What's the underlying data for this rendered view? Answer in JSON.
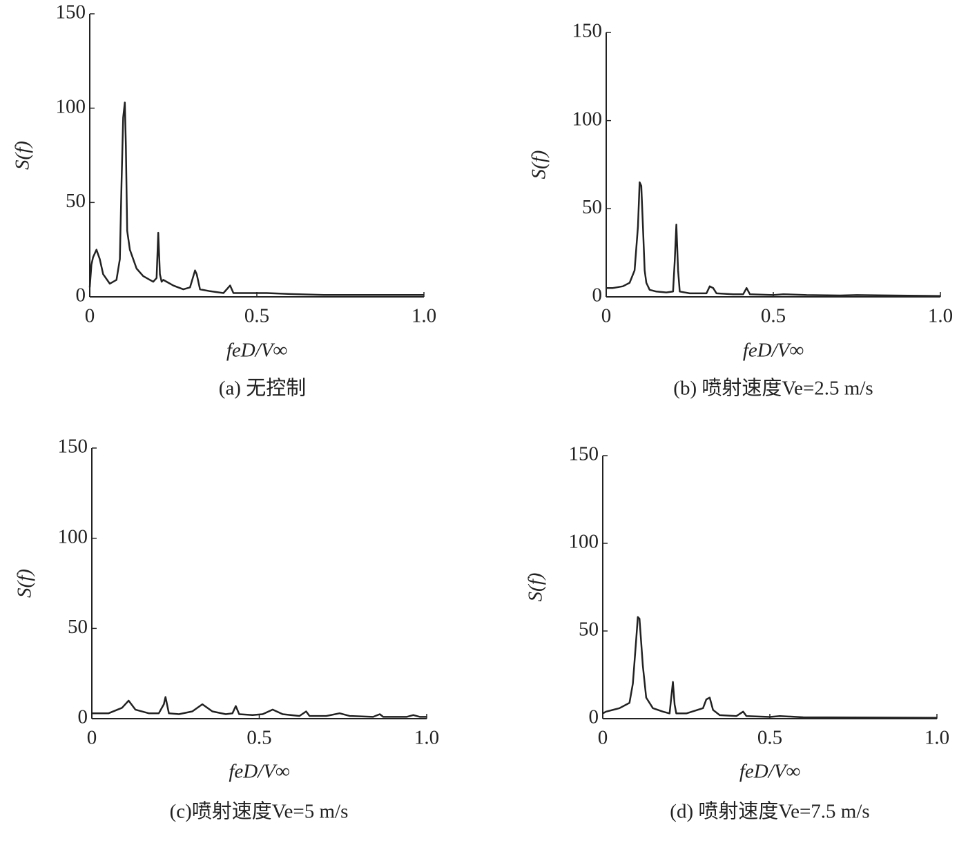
{
  "chart_data": [
    {
      "type": "line",
      "caption": "(a) 无控制",
      "xlabel": "feD/V∞",
      "ylabel": "S(f)",
      "color": "#222222",
      "xlim": [
        0,
        1
      ],
      "xticks": [
        0,
        0.5,
        {
          "value": 1,
          "label": "1.0"
        }
      ],
      "ylim": [
        0,
        150
      ],
      "yticks": [
        0,
        50,
        100,
        150
      ],
      "x": [
        0,
        0.005,
        0.01,
        0.02,
        0.03,
        0.04,
        0.06,
        0.08,
        0.09,
        0.095,
        0.1,
        0.105,
        0.108,
        0.112,
        0.12,
        0.14,
        0.16,
        0.18,
        0.19,
        0.2,
        0.205,
        0.21,
        0.215,
        0.22,
        0.23,
        0.25,
        0.28,
        0.3,
        0.315,
        0.32,
        0.33,
        0.36,
        0.4,
        0.42,
        0.43,
        0.45,
        0.5,
        0.53,
        0.6,
        0.7,
        0.8,
        1.0
      ],
      "values": [
        5,
        17,
        21,
        25,
        20,
        12,
        7,
        9,
        20,
        60,
        95,
        103,
        80,
        35,
        25,
        15,
        11,
        9,
        8,
        10,
        34,
        12,
        8,
        9,
        8,
        6,
        4,
        5,
        14,
        12,
        4,
        3,
        2,
        6,
        2,
        2,
        2,
        2,
        1.5,
        1,
        1,
        1
      ]
    },
    {
      "type": "line",
      "caption": "(b) 喷射速度Ve=2.5 m/s",
      "xlabel": "feD/V∞",
      "ylabel": "S(f)",
      "color": "#222222",
      "xlim": [
        0,
        1
      ],
      "xticks": [
        0,
        0.5,
        {
          "value": 1,
          "label": "1.0"
        }
      ],
      "ylim": [
        0,
        150
      ],
      "yticks": [
        0,
        50,
        100,
        150
      ],
      "x": [
        0,
        0.02,
        0.05,
        0.07,
        0.085,
        0.095,
        0.1,
        0.105,
        0.11,
        0.115,
        0.12,
        0.13,
        0.15,
        0.18,
        0.2,
        0.205,
        0.21,
        0.215,
        0.22,
        0.25,
        0.3,
        0.31,
        0.32,
        0.33,
        0.38,
        0.41,
        0.42,
        0.43,
        0.5,
        0.53,
        0.6,
        0.7,
        0.75,
        1.0
      ],
      "values": [
        5,
        5,
        6,
        8,
        15,
        40,
        65,
        63,
        40,
        15,
        8,
        4,
        3,
        2.5,
        3,
        20,
        41,
        15,
        3,
        2,
        2,
        6,
        5,
        2,
        1.5,
        1.5,
        5,
        1.5,
        1,
        1.5,
        1,
        0.8,
        1,
        0.5
      ]
    },
    {
      "type": "line",
      "caption": "(c)喷射速度Ve=5 m/s",
      "xlabel": "feD/V∞",
      "ylabel": "S(f)",
      "color": "#222222",
      "xlim": [
        0,
        1
      ],
      "xticks": [
        0,
        0.5,
        {
          "value": 1,
          "label": "1.0"
        }
      ],
      "ylim": [
        0,
        150
      ],
      "yticks": [
        0,
        50,
        100,
        150
      ],
      "x": [
        0,
        0.05,
        0.09,
        0.11,
        0.13,
        0.17,
        0.2,
        0.215,
        0.22,
        0.23,
        0.26,
        0.3,
        0.33,
        0.36,
        0.4,
        0.42,
        0.43,
        0.44,
        0.48,
        0.51,
        0.54,
        0.57,
        0.62,
        0.64,
        0.65,
        0.7,
        0.74,
        0.77,
        0.84,
        0.86,
        0.87,
        0.94,
        0.96,
        0.98,
        1.0
      ],
      "values": [
        3,
        3,
        6,
        10,
        5,
        3,
        3,
        8,
        12,
        3,
        2.5,
        4,
        8,
        4,
        2.5,
        3,
        7,
        2.5,
        2,
        2.5,
        5,
        2.5,
        1.5,
        4,
        1.5,
        1.5,
        3,
        1.5,
        1,
        2.5,
        1,
        1,
        2,
        1,
        1
      ]
    },
    {
      "type": "line",
      "caption": "(d) 喷射速度Ve=7.5 m/s",
      "xlabel": "feD/V∞",
      "ylabel": "S(f)",
      "color": "#222222",
      "xlim": [
        0,
        1
      ],
      "xticks": [
        0,
        0.5,
        {
          "value": 1,
          "label": "1.0"
        }
      ],
      "ylim": [
        0,
        150
      ],
      "yticks": [
        0,
        50,
        100,
        150
      ],
      "x": [
        0,
        0.01,
        0.05,
        0.08,
        0.09,
        0.1,
        0.105,
        0.11,
        0.12,
        0.13,
        0.15,
        0.18,
        0.2,
        0.205,
        0.21,
        0.215,
        0.22,
        0.25,
        0.3,
        0.31,
        0.32,
        0.33,
        0.35,
        0.4,
        0.42,
        0.43,
        0.5,
        0.53,
        0.6,
        1.0
      ],
      "values": [
        3,
        4,
        6,
        9,
        20,
        45,
        58,
        57,
        30,
        12,
        6,
        4,
        3,
        12,
        21,
        8,
        3,
        3,
        6,
        11,
        12,
        5,
        2,
        1.5,
        4,
        1.5,
        1,
        1.5,
        0.8,
        0.5
      ]
    }
  ]
}
